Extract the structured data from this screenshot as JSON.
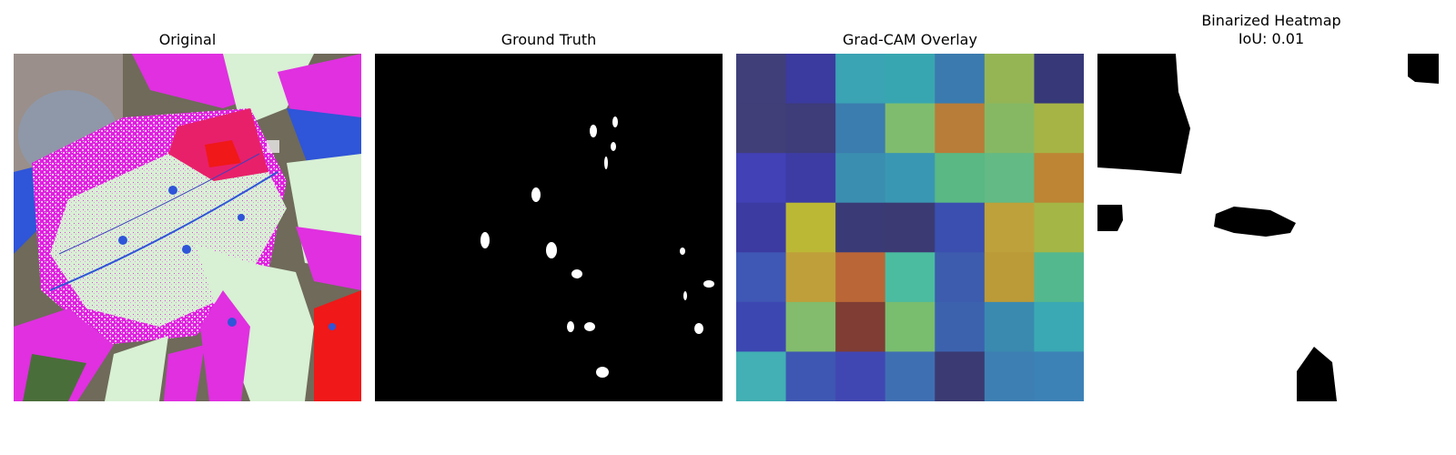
{
  "panels": {
    "original": {
      "title": "Original"
    },
    "ground_truth": {
      "title": "Ground Truth"
    },
    "gradcam": {
      "title": "Grad-CAM Overlay",
      "grid_colors": [
        [
          "#403f7a",
          "#3b3a9e",
          "#3aa3b4",
          "#38a6b1",
          "#3b7aae",
          "#95b555",
          "#363878"
        ],
        [
          "#413f78",
          "#3e3c79",
          "#3b7dae",
          "#7fbc6d",
          "#b87d38",
          "#86b863",
          "#a6b446"
        ],
        [
          "#4241b6",
          "#3c3ca4",
          "#3a8fb0",
          "#3a97b3",
          "#59b884",
          "#63ba84",
          "#bd8534"
        ],
        [
          "#3b3ba2",
          "#bbb836",
          "#3a3b76",
          "#3c3a73",
          "#3b4fb0",
          "#bea13a",
          "#a4b646"
        ],
        [
          "#3f57b5",
          "#bf9f39",
          "#bb6637",
          "#4bbca0",
          "#3d5cad",
          "#bb9b38",
          "#54b88f"
        ],
        [
          "#3d47b2",
          "#82bc6c",
          "#7f3d34",
          "#79bd6f",
          "#3c62ae",
          "#3a8ab0",
          "#3aa9b4"
        ],
        [
          "#42b0b4",
          "#3e57b2",
          "#4147b2",
          "#3f6fb3",
          "#3b3a72",
          "#3d7fb3",
          "#3d82b7"
        ]
      ]
    },
    "binarized": {
      "title": "Binarized Heatmap",
      "iou_text": "IoU: 0.01"
    }
  }
}
